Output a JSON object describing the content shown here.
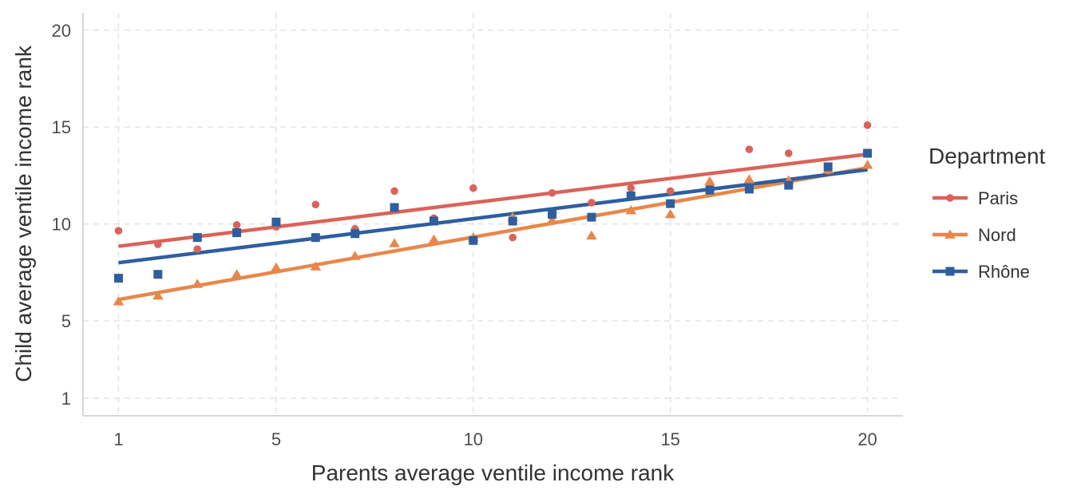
{
  "chart_data": {
    "type": "scatter",
    "xlabel": "Parents average ventile income rank",
    "ylabel": "Child average ventile income rank",
    "xlim": [
      0.1,
      20.9
    ],
    "ylim": [
      0.1,
      20.9
    ],
    "x_ticks": [
      1,
      5,
      10,
      15,
      20
    ],
    "y_ticks": [
      1,
      5,
      10,
      15,
      20
    ],
    "grid": true,
    "legend_title": "Department",
    "legend_position": "right",
    "x": [
      1,
      2,
      3,
      4,
      5,
      6,
      7,
      8,
      9,
      10,
      11,
      12,
      13,
      14,
      15,
      16,
      17,
      18,
      19,
      20
    ],
    "series": [
      {
        "name": "Paris",
        "color": "#d9635a",
        "marker": "circle",
        "values": [
          9.65,
          8.95,
          8.7,
          9.95,
          9.85,
          11.0,
          9.75,
          11.7,
          10.3,
          11.85,
          9.3,
          11.6,
          11.1,
          11.85,
          11.7,
          12.05,
          13.85,
          13.65,
          12.75,
          15.1
        ],
        "fit": [
          8.85,
          13.6
        ]
      },
      {
        "name": "Nord",
        "color": "#e8874a",
        "marker": "triangle",
        "values": [
          6.0,
          6.3,
          6.9,
          7.4,
          7.75,
          7.8,
          8.35,
          9.0,
          9.2,
          9.3,
          10.35,
          10.2,
          9.4,
          10.7,
          10.5,
          12.2,
          12.3,
          12.25,
          12.8,
          13.05
        ],
        "fit": [
          6.1,
          12.9
        ]
      },
      {
        "name": "Rhône",
        "color": "#2f5e9e",
        "marker": "square",
        "values": [
          7.2,
          7.4,
          9.3,
          9.55,
          10.1,
          9.3,
          9.5,
          10.85,
          10.15,
          9.15,
          10.15,
          10.5,
          10.35,
          11.45,
          11.05,
          11.75,
          11.8,
          12.0,
          12.95,
          13.65
        ],
        "fit": [
          8.0,
          12.8
        ]
      }
    ]
  }
}
